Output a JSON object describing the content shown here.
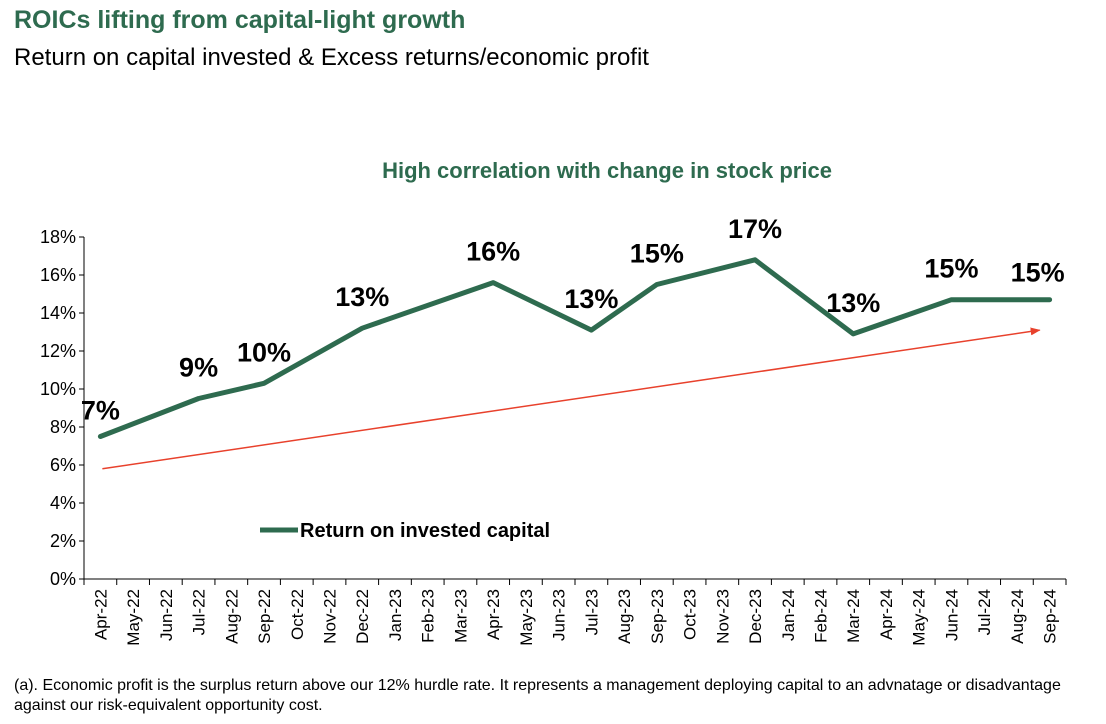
{
  "header": {
    "title": "ROICs lifting from capital-light growth",
    "subtitle": "Return on capital invested & Excess returns/economic profit"
  },
  "footnote": "(a). Economic profit is the surplus return above our 12% hurdle rate. It represents a management deploying capital to an advnatage or disadvantage against our risk-equivalent opportunity cost.",
  "colors": {
    "series": "#2E6B4F",
    "trend": "#E8412C",
    "title": "#2E6B4F"
  },
  "chart_data": {
    "type": "line",
    "title": "High correlation with change in stock price",
    "xlabel": "",
    "ylabel": "",
    "ylim": [
      0,
      18
    ],
    "yticks": [
      0,
      2,
      4,
      6,
      8,
      10,
      12,
      14,
      16,
      18
    ],
    "ytick_labels": [
      "0%",
      "2%",
      "4%",
      "6%",
      "8%",
      "10%",
      "12%",
      "14%",
      "16%",
      "18%"
    ],
    "grid": false,
    "legend_position": "bottom-left",
    "categories": [
      "Apr-22",
      "May-22",
      "Jun-22",
      "Jul-22",
      "Aug-22",
      "Sep-22",
      "Oct-22",
      "Nov-22",
      "Dec-22",
      "Jan-23",
      "Feb-23",
      "Mar-23",
      "Apr-23",
      "May-23",
      "Jun-23",
      "Jul-23",
      "Aug-23",
      "Sep-23",
      "Oct-23",
      "Nov-23",
      "Dec-23",
      "Jan-24",
      "Feb-24",
      "Mar-24",
      "Apr-24",
      "May-24",
      "Jun-24",
      "Jul-24",
      "Aug-24",
      "Sep-24"
    ],
    "series": [
      {
        "name": "Return on invested capital",
        "points": [
          {
            "x": "Apr-22",
            "y": 7.5
          },
          {
            "x": "Jul-22",
            "y": 9.5
          },
          {
            "x": "Sep-22",
            "y": 10.3
          },
          {
            "x": "Dec-22",
            "y": 13.2
          },
          {
            "x": "Apr-23",
            "y": 15.6
          },
          {
            "x": "Jul-23",
            "y": 13.1
          },
          {
            "x": "Sep-23",
            "y": 15.5
          },
          {
            "x": "Dec-23",
            "y": 16.8
          },
          {
            "x": "Mar-24",
            "y": 12.9
          },
          {
            "x": "Jun-24",
            "y": 14.7
          },
          {
            "x": "Sep-24",
            "y": 14.7
          }
        ]
      }
    ],
    "data_labels": [
      {
        "x": "Apr-22",
        "text": "7%"
      },
      {
        "x": "Jul-22",
        "text": "9%"
      },
      {
        "x": "Sep-22",
        "text": "10%"
      },
      {
        "x": "Dec-22",
        "text": "13%"
      },
      {
        "x": "Apr-23",
        "text": "16%"
      },
      {
        "x": "Jul-23",
        "text": "13%"
      },
      {
        "x": "Sep-23",
        "text": "15%"
      },
      {
        "x": "Dec-23",
        "text": "17%"
      },
      {
        "x": "Mar-24",
        "text": "13%"
      },
      {
        "x": "Jun-24",
        "text": "15%"
      },
      {
        "x": "Sep-24",
        "text": "15%"
      }
    ],
    "trend_arrow": {
      "from": {
        "x": "Apr-22",
        "y": 5.8
      },
      "to": {
        "x": "Sep-24",
        "y": 13.1
      }
    }
  }
}
